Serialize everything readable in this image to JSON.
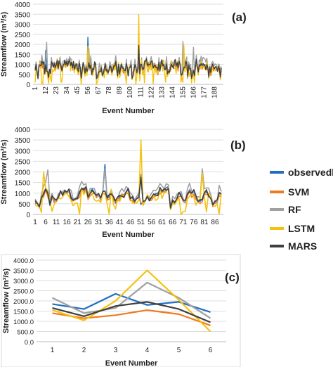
{
  "colors": {
    "observed": "#1f6fbf",
    "SVM": "#f07a1e",
    "RF": "#a0a0a0",
    "LSTM": "#f5c10e",
    "MARS": "#3f3f3f"
  },
  "legend": [
    "observedl",
    "SVM",
    "RF",
    "LSTM",
    "MARS"
  ],
  "chart_data": [
    {
      "panel": "(a)",
      "type": "line",
      "xlabel": "Event Number",
      "ylabel": "Streamflow (m³/s)",
      "ylim": [
        0,
        4000
      ],
      "yticks": [
        "0",
        "500",
        "1000",
        "1500",
        "2000",
        "2500",
        "3000",
        "3500",
        "4000"
      ],
      "xticks": [
        "1",
        "12",
        "23",
        "34",
        "45",
        "56",
        "67",
        "78",
        "89",
        "100",
        "111",
        "122",
        "133",
        "144",
        "155",
        "166",
        "177",
        "188"
      ],
      "n": 195,
      "x_start": 1,
      "x_tick_step": 11,
      "seed": 7,
      "spikes": [
        {
          "x": 12,
          "series": "observed",
          "value": 1700
        },
        {
          "x": 13,
          "series": "RF",
          "value": 2100
        },
        {
          "x": 56,
          "series": "observed",
          "value": 2350
        },
        {
          "x": 56,
          "series": "LSTM",
          "value": 1900
        },
        {
          "x": 57,
          "series": "RF",
          "value": 1800
        },
        {
          "x": 109,
          "series": "LSTM",
          "value": 3500
        },
        {
          "x": 109,
          "series": "MARS",
          "value": 1950
        },
        {
          "x": 109,
          "series": "RF",
          "value": 1800
        },
        {
          "x": 155,
          "series": "RF",
          "value": 2150
        },
        {
          "x": 156,
          "series": "LSTM",
          "value": 1950
        },
        {
          "x": 166,
          "series": "RF",
          "value": 1850
        }
      ]
    },
    {
      "panel": "(b)",
      "type": "line",
      "xlabel": "Event Number",
      "ylabel": "Streamflow (m³/s)",
      "ylim": [
        0,
        4000
      ],
      "yticks": [
        "0",
        "500",
        "1000",
        "1500",
        "2000",
        "2500",
        "3000",
        "3500",
        "4000"
      ],
      "xticks": [
        "1",
        "6",
        "11",
        "16",
        "21",
        "26",
        "31",
        "36",
        "41",
        "46",
        "51",
        "56",
        "61",
        "66",
        "71",
        "76",
        "81",
        "86"
      ],
      "n": 89,
      "x_start": 1,
      "x_tick_step": 5,
      "seed": 19,
      "spikes": [
        {
          "x": 5,
          "series": "LSTM",
          "value": 2000
        },
        {
          "x": 7,
          "series": "RF",
          "value": 2100
        },
        {
          "x": 34,
          "series": "observed",
          "value": 2350
        },
        {
          "x": 34,
          "series": "RF",
          "value": 2150
        },
        {
          "x": 51,
          "series": "LSTM",
          "value": 3500
        },
        {
          "x": 51,
          "series": "RF",
          "value": 1900
        },
        {
          "x": 51,
          "series": "MARS",
          "value": 1750
        },
        {
          "x": 80,
          "series": "RF",
          "value": 2150
        },
        {
          "x": 80,
          "series": "LSTM",
          "value": 1950
        },
        {
          "x": 70,
          "series": "LSTM",
          "value": 0
        },
        {
          "x": 72,
          "series": "LSTM",
          "value": 150
        }
      ]
    },
    {
      "panel": "(c)",
      "type": "line",
      "xlabel": "Event Number",
      "ylabel": "Streamflow (m³/s)",
      "ylim": [
        0,
        4000
      ],
      "yticks": [
        "0.0",
        "500.0",
        "1000.0",
        "1500.0",
        "2000.0",
        "2500.0",
        "3000.0",
        "3500.0",
        "4000.0"
      ],
      "categories": [
        "1",
        "2",
        "3",
        "4",
        "5",
        "6"
      ],
      "series": [
        {
          "name": "observed",
          "values": [
            1850,
            1600,
            2350,
            1800,
            1950,
            1450
          ]
        },
        {
          "name": "SVM",
          "values": [
            1400,
            1150,
            1300,
            1550,
            1350,
            800
          ]
        },
        {
          "name": "RF",
          "values": [
            2150,
            1400,
            1650,
            2900,
            2150,
            1150
          ]
        },
        {
          "name": "LSTM",
          "values": [
            1550,
            1050,
            2000,
            3500,
            2050,
            500
          ]
        },
        {
          "name": "MARS",
          "values": [
            1650,
            1250,
            1750,
            1950,
            1600,
            950
          ]
        }
      ]
    }
  ]
}
